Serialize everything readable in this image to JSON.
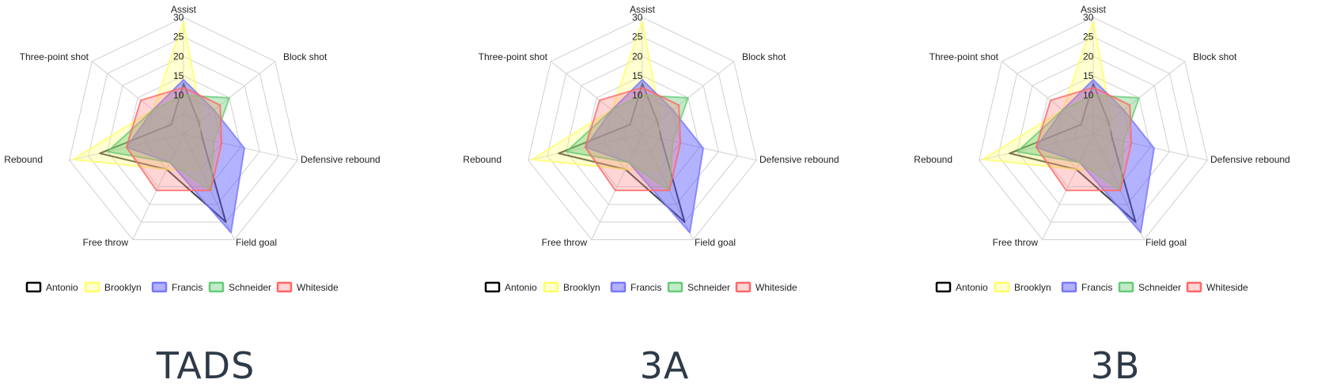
{
  "chart_data": [
    {
      "type": "radar",
      "caption": "TADS",
      "axes": [
        "Assist",
        "Block shot",
        "Defensive rebound",
        "Field goal",
        "Free throw",
        "Rebound",
        "Three-point shot"
      ],
      "rlim": [
        0,
        30
      ],
      "ticks": [
        "30",
        "25",
        "20",
        "15",
        "10"
      ],
      "grid": true,
      "legend_position": "bottom",
      "series": [
        {
          "name": "Antonio",
          "values": [
            13,
            5,
            5,
            25,
            10,
            22,
            4
          ],
          "stroke": "#000000",
          "fill": "#000000",
          "fill_opacity": 0.05
        },
        {
          "name": "Brooklyn",
          "values": [
            29,
            6,
            4,
            10,
            10,
            29,
            10
          ],
          "stroke": "#ffff66",
          "fill": "#ffff66",
          "fill_opacity": 0.3
        },
        {
          "name": "Francis",
          "values": [
            14,
            10,
            16,
            28,
            8,
            15,
            10
          ],
          "stroke": "#7777ff",
          "fill": "#5555ff",
          "fill_opacity": 0.45
        },
        {
          "name": "Schneider",
          "values": [
            10,
            15,
            8,
            16,
            8,
            20,
            10
          ],
          "stroke": "#66cc77",
          "fill": "#66cc77",
          "fill_opacity": 0.4
        },
        {
          "name": "Whiteside",
          "values": [
            12,
            12,
            10,
            16,
            16,
            15,
            14
          ],
          "stroke": "#ff6666",
          "fill": "#ff8888",
          "fill_opacity": 0.35
        }
      ]
    },
    {
      "type": "radar",
      "caption": "3A",
      "axes": [
        "Assist",
        "Block shot",
        "Defensive rebound",
        "Field goal",
        "Free throw",
        "Rebound",
        "Three-point shot"
      ],
      "rlim": [
        0,
        30
      ],
      "ticks": [
        "30",
        "25",
        "20",
        "15",
        "10"
      ],
      "grid": true,
      "legend_position": "bottom",
      "series": [
        {
          "name": "Antonio",
          "values": [
            13,
            5,
            5,
            25,
            10,
            22,
            4
          ],
          "stroke": "#000000",
          "fill": "#000000",
          "fill_opacity": 0.05
        },
        {
          "name": "Brooklyn",
          "values": [
            29,
            6,
            4,
            10,
            10,
            29,
            10
          ],
          "stroke": "#ffff66",
          "fill": "#ffff66",
          "fill_opacity": 0.3
        },
        {
          "name": "Francis",
          "values": [
            14,
            10,
            16,
            28,
            8,
            15,
            10
          ],
          "stroke": "#7777ff",
          "fill": "#5555ff",
          "fill_opacity": 0.45
        },
        {
          "name": "Schneider",
          "values": [
            10,
            15,
            8,
            16,
            8,
            20,
            10
          ],
          "stroke": "#66cc77",
          "fill": "#66cc77",
          "fill_opacity": 0.4
        },
        {
          "name": "Whiteside",
          "values": [
            12,
            12,
            10,
            16,
            16,
            15,
            14
          ],
          "stroke": "#ff6666",
          "fill": "#ff8888",
          "fill_opacity": 0.35
        }
      ]
    },
    {
      "type": "radar",
      "caption": "3B",
      "axes": [
        "Assist",
        "Block shot",
        "Defensive rebound",
        "Field goal",
        "Free throw",
        "Rebound",
        "Three-point shot"
      ],
      "rlim": [
        0,
        30
      ],
      "ticks": [
        "30",
        "25",
        "20",
        "15",
        "10"
      ],
      "grid": true,
      "legend_position": "bottom",
      "series": [
        {
          "name": "Antonio",
          "values": [
            13,
            5,
            5,
            25,
            10,
            22,
            4
          ],
          "stroke": "#000000",
          "fill": "#000000",
          "fill_opacity": 0.05
        },
        {
          "name": "Brooklyn",
          "values": [
            29,
            6,
            4,
            10,
            10,
            29,
            10
          ],
          "stroke": "#ffff66",
          "fill": "#ffff66",
          "fill_opacity": 0.3
        },
        {
          "name": "Francis",
          "values": [
            14,
            10,
            16,
            28,
            8,
            15,
            10
          ],
          "stroke": "#7777ff",
          "fill": "#5555ff",
          "fill_opacity": 0.45
        },
        {
          "name": "Schneider",
          "values": [
            10,
            15,
            8,
            16,
            8,
            20,
            10
          ],
          "stroke": "#66cc77",
          "fill": "#66cc77",
          "fill_opacity": 0.4
        },
        {
          "name": "Whiteside",
          "values": [
            12,
            12,
            10,
            16,
            16,
            15,
            14
          ],
          "stroke": "#ff6666",
          "fill": "#ff8888",
          "fill_opacity": 0.35
        }
      ]
    }
  ]
}
